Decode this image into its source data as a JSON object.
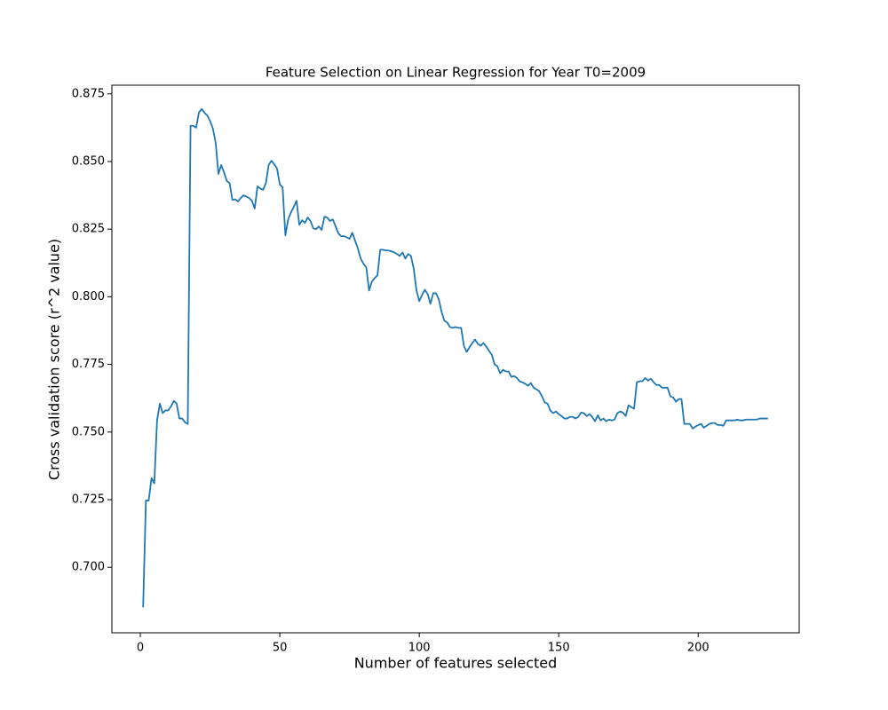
{
  "chart_data": {
    "type": "line",
    "title": "Feature Selection on Linear Regression for Year T0=2009",
    "x_label": "Number of features selected",
    "y_label": "Cross validation score (r^2 value)",
    "x": [
      1,
      2,
      3,
      4,
      5,
      6,
      7,
      8,
      9,
      10,
      11,
      12,
      13,
      14,
      15,
      16,
      17,
      18,
      19,
      20,
      21,
      22,
      23,
      24,
      25,
      26,
      27,
      28,
      29,
      30,
      31,
      32,
      33,
      34,
      35,
      36,
      37,
      38,
      39,
      40,
      41,
      42,
      43,
      44,
      45,
      46,
      47,
      48,
      49,
      50,
      51,
      52,
      53,
      54,
      55,
      56,
      57,
      58,
      59,
      60,
      61,
      62,
      63,
      64,
      65,
      66,
      67,
      68,
      69,
      70,
      71,
      72,
      73,
      74,
      75,
      76,
      77,
      78,
      79,
      80,
      81,
      82,
      83,
      84,
      85,
      86,
      87,
      88,
      89,
      90,
      91,
      92,
      93,
      94,
      95,
      96,
      97,
      98,
      99,
      100,
      101,
      102,
      103,
      104,
      105,
      106,
      107,
      108,
      109,
      110,
      111,
      112,
      113,
      114,
      115,
      116,
      117,
      118,
      119,
      120,
      121,
      122,
      123,
      124,
      125,
      126,
      127,
      128,
      129,
      130,
      131,
      132,
      133,
      134,
      135,
      136,
      137,
      138,
      139,
      140,
      141,
      142,
      143,
      144,
      145,
      146,
      147,
      148,
      149,
      150,
      151,
      152,
      153,
      154,
      155,
      156,
      157,
      158,
      159,
      160,
      161,
      162,
      163,
      164,
      165,
      166,
      167,
      168,
      169,
      170,
      171,
      172,
      173,
      174,
      175,
      176,
      177,
      178,
      179,
      180,
      181,
      182,
      183,
      184,
      185,
      186,
      187,
      188,
      189,
      190,
      191,
      192,
      193,
      194,
      195,
      196,
      197,
      198,
      199,
      200,
      201,
      202,
      203,
      204,
      205,
      206,
      207,
      208,
      209,
      210,
      211,
      212,
      213,
      214,
      215,
      216,
      217,
      218,
      219,
      220,
      221,
      222,
      223,
      224,
      225
    ],
    "series": [
      {
        "color": "#1f77b4",
        "values": [
          0.6852,
          0.7247,
          0.7247,
          0.733,
          0.731,
          0.7543,
          0.7605,
          0.757,
          0.758,
          0.758,
          0.7595,
          0.7615,
          0.7605,
          0.755,
          0.755,
          0.7536,
          0.753,
          0.8632,
          0.8632,
          0.8625,
          0.8681,
          0.8694,
          0.868,
          0.867,
          0.865,
          0.8622,
          0.857,
          0.8454,
          0.8487,
          0.846,
          0.8428,
          0.842,
          0.8358,
          0.836,
          0.8352,
          0.8365,
          0.8375,
          0.837,
          0.8365,
          0.8355,
          0.8326,
          0.8408,
          0.84,
          0.8395,
          0.842,
          0.8487,
          0.8503,
          0.849,
          0.8474,
          0.8415,
          0.8405,
          0.8227,
          0.8286,
          0.8312,
          0.8332,
          0.8355,
          0.8266,
          0.8283,
          0.8273,
          0.8293,
          0.828,
          0.8253,
          0.825,
          0.826,
          0.8247,
          0.8296,
          0.8293,
          0.828,
          0.8286,
          0.826,
          0.8234,
          0.8224,
          0.8224,
          0.822,
          0.8214,
          0.8237,
          0.8207,
          0.8178,
          0.8141,
          0.8122,
          0.8109,
          0.8023,
          0.8056,
          0.8069,
          0.8079,
          0.8174,
          0.8174,
          0.8171,
          0.8171,
          0.8168,
          0.8164,
          0.8158,
          0.8151,
          0.8164,
          0.8141,
          0.8158,
          0.8151,
          0.8105,
          0.8023,
          0.7984,
          0.8007,
          0.8026,
          0.801,
          0.7974,
          0.8013,
          0.8013,
          0.799,
          0.7944,
          0.7911,
          0.7905,
          0.7888,
          0.7885,
          0.7888,
          0.7885,
          0.7885,
          0.7819,
          0.7796,
          0.7813,
          0.7829,
          0.7842,
          0.7826,
          0.7819,
          0.7829,
          0.7816,
          0.78,
          0.7786,
          0.775,
          0.7743,
          0.7717,
          0.773,
          0.7724,
          0.7724,
          0.7704,
          0.7707,
          0.77,
          0.7687,
          0.7684,
          0.7678,
          0.7671,
          0.7681,
          0.7664,
          0.7658,
          0.7651,
          0.7632,
          0.7609,
          0.7605,
          0.7579,
          0.757,
          0.7576,
          0.7566,
          0.7559,
          0.755,
          0.755,
          0.7556,
          0.7556,
          0.755,
          0.7556,
          0.7572,
          0.757,
          0.7559,
          0.7566,
          0.7556,
          0.754,
          0.7562,
          0.7543,
          0.755,
          0.754,
          0.7546,
          0.7543,
          0.7546,
          0.757,
          0.7576,
          0.7572,
          0.7559,
          0.7599,
          0.7592,
          0.7586,
          0.7684,
          0.7688,
          0.7688,
          0.77,
          0.769,
          0.7697,
          0.7684,
          0.7674,
          0.7674,
          0.7664,
          0.7664,
          0.7664,
          0.7632,
          0.7628,
          0.7612,
          0.7622,
          0.7622,
          0.753,
          0.753,
          0.753,
          0.7513,
          0.752,
          0.7526,
          0.753,
          0.7516,
          0.7523,
          0.753,
          0.7533,
          0.7533,
          0.7526,
          0.7526,
          0.7523,
          0.7543,
          0.7543,
          0.7543,
          0.7543,
          0.7546,
          0.7543,
          0.7543,
          0.7546,
          0.7546,
          0.7546,
          0.7546,
          0.7546,
          0.755,
          0.755,
          0.755,
          0.755
        ]
      }
    ],
    "xlim": [
      -10.2,
      236.2
    ],
    "ylim": [
      0.6758,
      0.8782
    ],
    "xticks": [
      0,
      50,
      100,
      150,
      200
    ],
    "yticks": [
      {
        "value": 0.7,
        "label": "0.700"
      },
      0.725,
      {
        "value": 0.75,
        "label": "0.750"
      },
      0.775,
      {
        "value": 0.8,
        "label": "0.800"
      },
      0.825,
      {
        "value": 0.85,
        "label": "0.850"
      },
      0.875
    ]
  }
}
